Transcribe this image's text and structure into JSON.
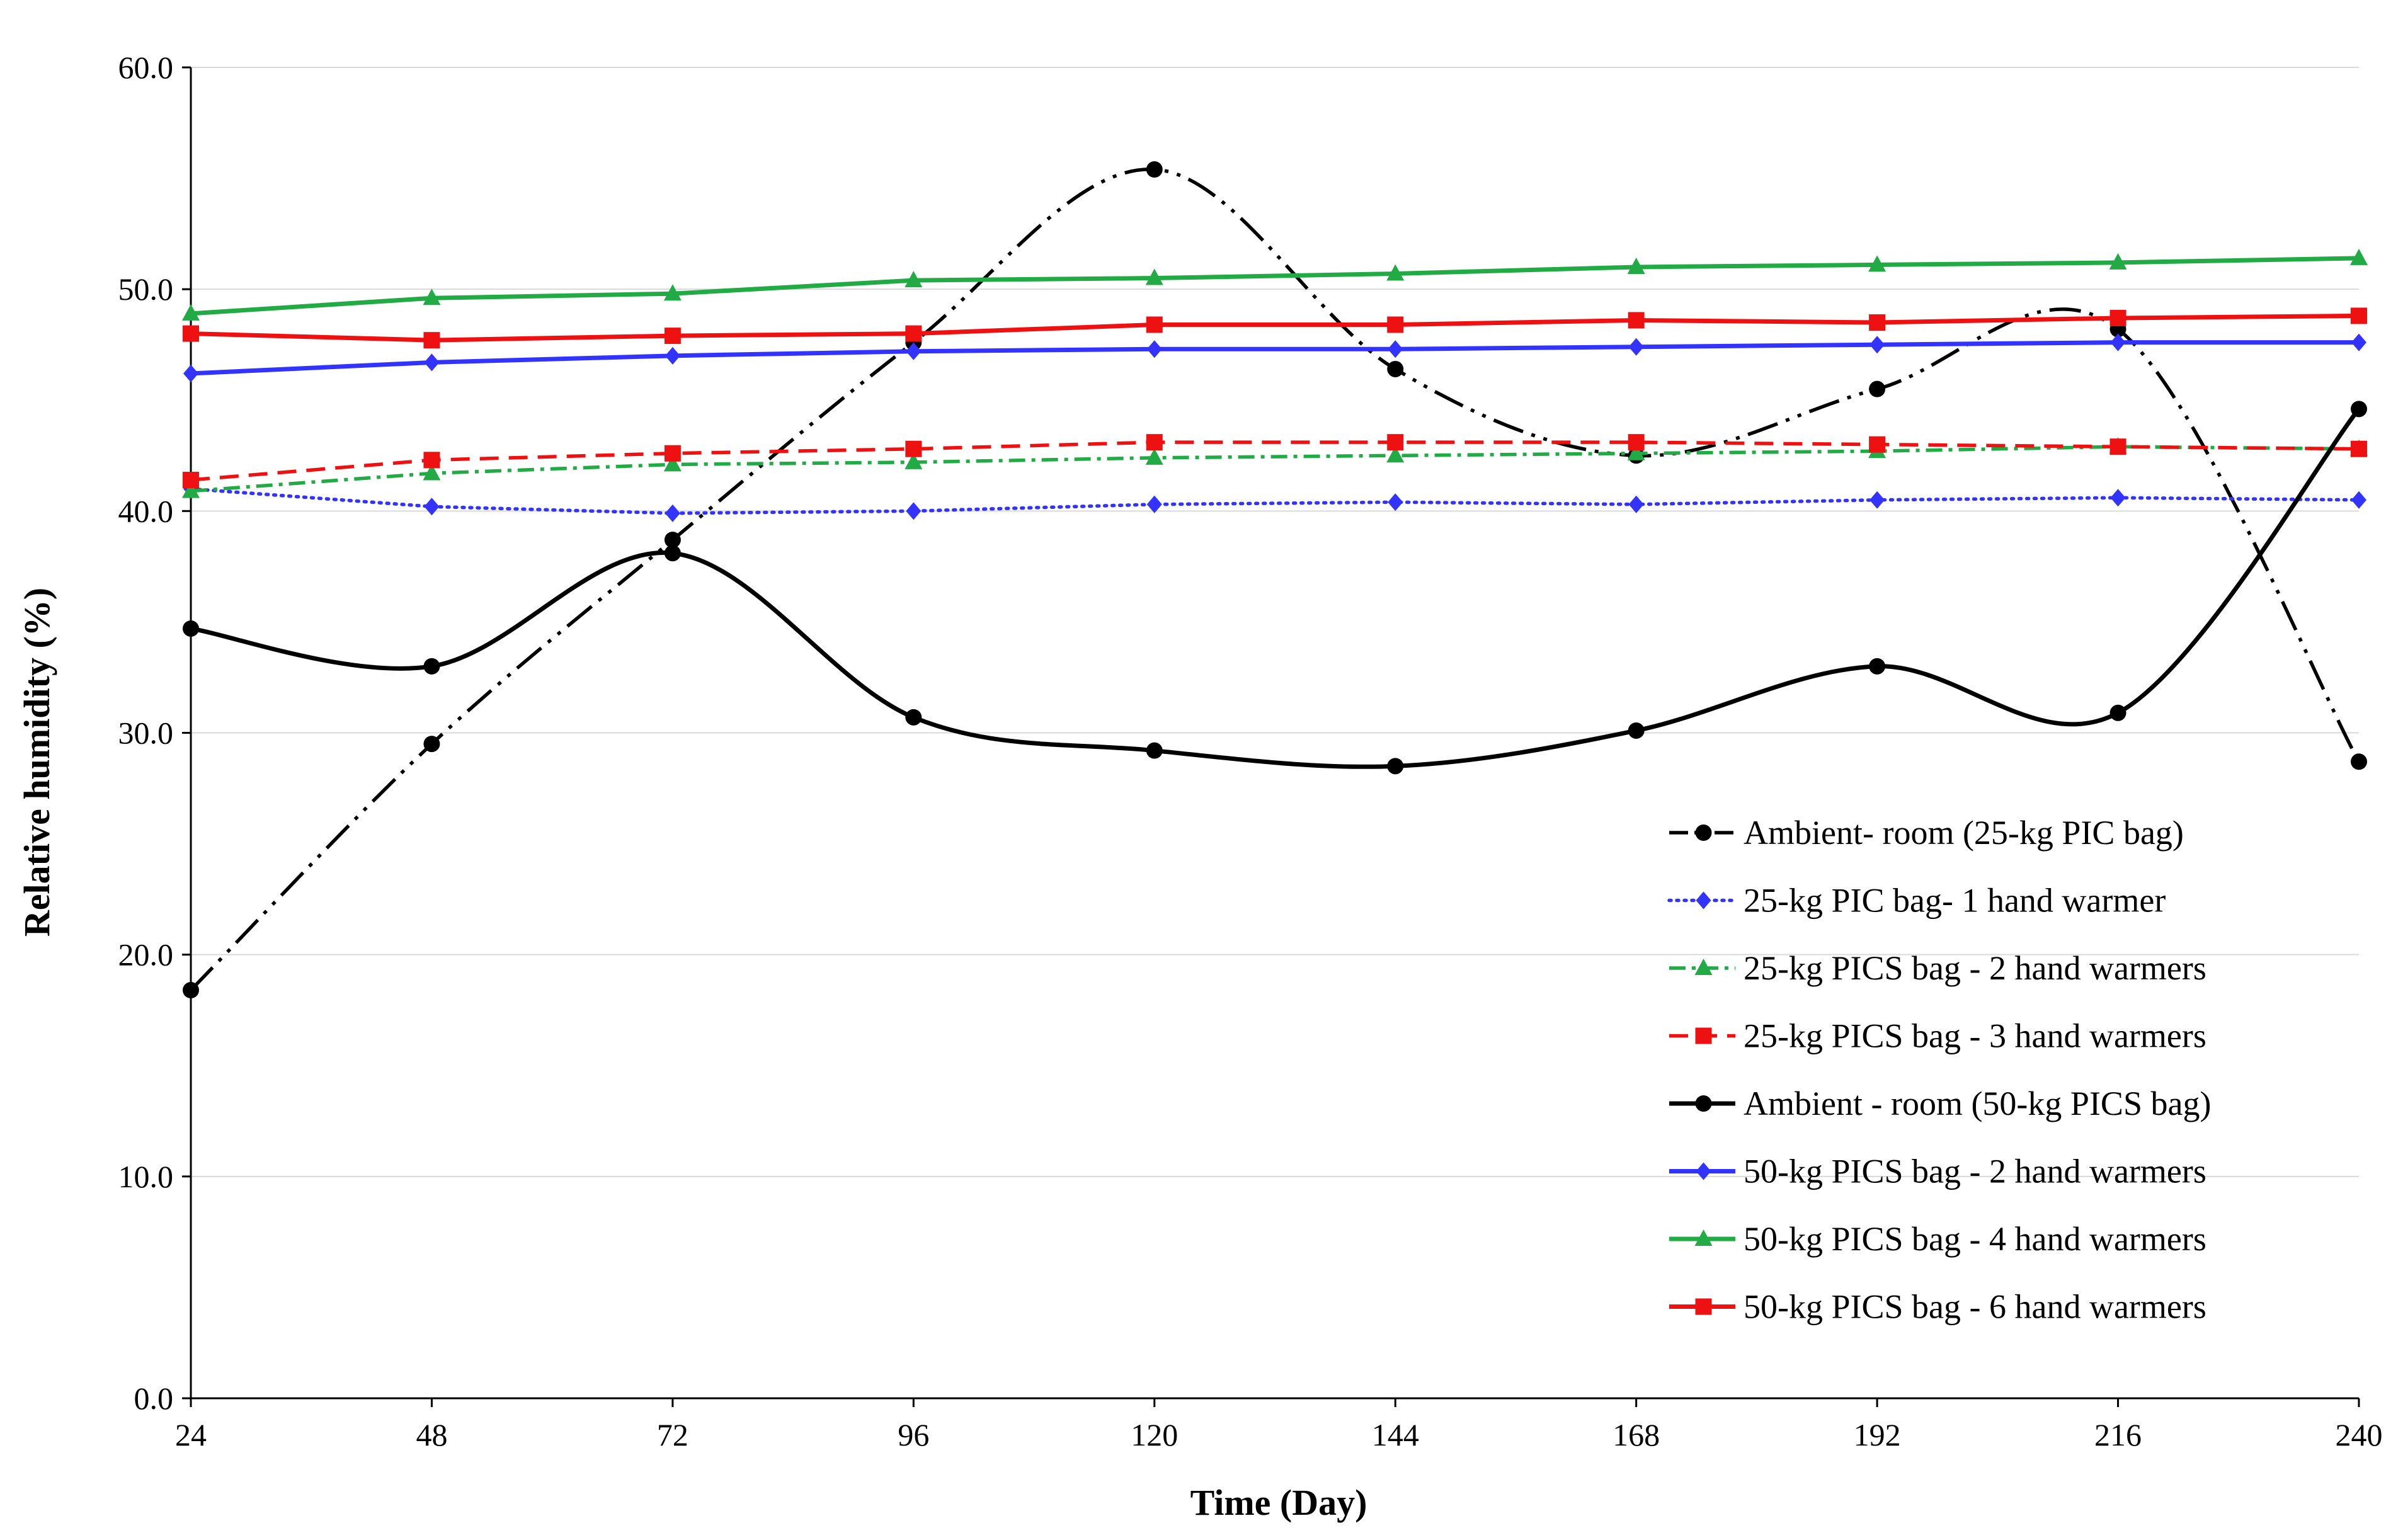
{
  "chart_data": {
    "type": "line",
    "title": "",
    "xlabel": "Time (Day)",
    "ylabel": "Relative humidity (%)",
    "x": [
      24,
      48,
      72,
      96,
      120,
      144,
      168,
      192,
      216,
      240
    ],
    "x_tick_labels": [
      "24",
      "48",
      "72",
      "96",
      "120",
      "144",
      "168",
      "192",
      "216",
      "240"
    ],
    "ylim": [
      0,
      60
    ],
    "y_ticks": [
      0,
      10,
      20,
      30,
      40,
      50,
      60
    ],
    "y_tick_labels": [
      "0.0",
      "10.0",
      "20.0",
      "30.0",
      "40.0",
      "50.0",
      "60.0"
    ],
    "grid": "horizontal",
    "legend_position": "bottom-right",
    "series": [
      {
        "name": "Ambient- room (25-kg PIC bag)",
        "color": "#000000",
        "line_style": "dash-dot-dot",
        "marker": "circle",
        "smooth": true,
        "values": [
          18.4,
          29.5,
          38.7,
          47.6,
          55.4,
          46.4,
          42.5,
          45.5,
          48.2,
          28.7
        ]
      },
      {
        "name": "25-kg PIC bag- 1 hand warmer",
        "color": "#3333ff",
        "line_style": "dotted",
        "marker": "diamond",
        "smooth": false,
        "values": [
          41.0,
          40.2,
          39.9,
          40.0,
          40.3,
          40.4,
          40.3,
          40.5,
          40.6,
          40.5
        ]
      },
      {
        "name": "25-kg PICS bag - 2 hand warmers",
        "color": "#22aa44",
        "line_style": "dash-dot",
        "marker": "triangle",
        "smooth": false,
        "values": [
          40.9,
          41.7,
          42.1,
          42.2,
          42.4,
          42.5,
          42.6,
          42.7,
          42.9,
          42.8
        ]
      },
      {
        "name": "25-kg PICS bag - 3 hand warmers",
        "color": "#ee1111",
        "line_style": "dashed",
        "marker": "square",
        "smooth": false,
        "values": [
          41.4,
          42.3,
          42.6,
          42.8,
          43.1,
          43.1,
          43.1,
          43.0,
          42.9,
          42.8
        ]
      },
      {
        "name": "Ambient - room (50-kg PICS bag)",
        "color": "#000000",
        "line_style": "solid",
        "marker": "circle",
        "smooth": true,
        "values": [
          34.7,
          33.0,
          38.1,
          30.7,
          29.2,
          28.5,
          30.1,
          33.0,
          30.9,
          44.6
        ]
      },
      {
        "name": "50-kg PICS bag - 2 hand warmers",
        "color": "#3333ff",
        "line_style": "solid",
        "marker": "diamond",
        "smooth": false,
        "values": [
          46.2,
          46.7,
          47.0,
          47.2,
          47.3,
          47.3,
          47.4,
          47.5,
          47.6,
          47.6
        ]
      },
      {
        "name": "50-kg PICS bag - 4 hand warmers",
        "color": "#22aa44",
        "line_style": "solid",
        "marker": "triangle",
        "smooth": false,
        "values": [
          48.9,
          49.6,
          49.8,
          50.4,
          50.5,
          50.7,
          51.0,
          51.1,
          51.2,
          51.4
        ]
      },
      {
        "name": "50-kg PICS bag - 6 hand warmers",
        "color": "#ee1111",
        "line_style": "solid",
        "marker": "square",
        "smooth": false,
        "values": [
          48.0,
          47.7,
          47.9,
          48.0,
          48.4,
          48.4,
          48.6,
          48.5,
          48.7,
          48.8
        ]
      }
    ]
  }
}
